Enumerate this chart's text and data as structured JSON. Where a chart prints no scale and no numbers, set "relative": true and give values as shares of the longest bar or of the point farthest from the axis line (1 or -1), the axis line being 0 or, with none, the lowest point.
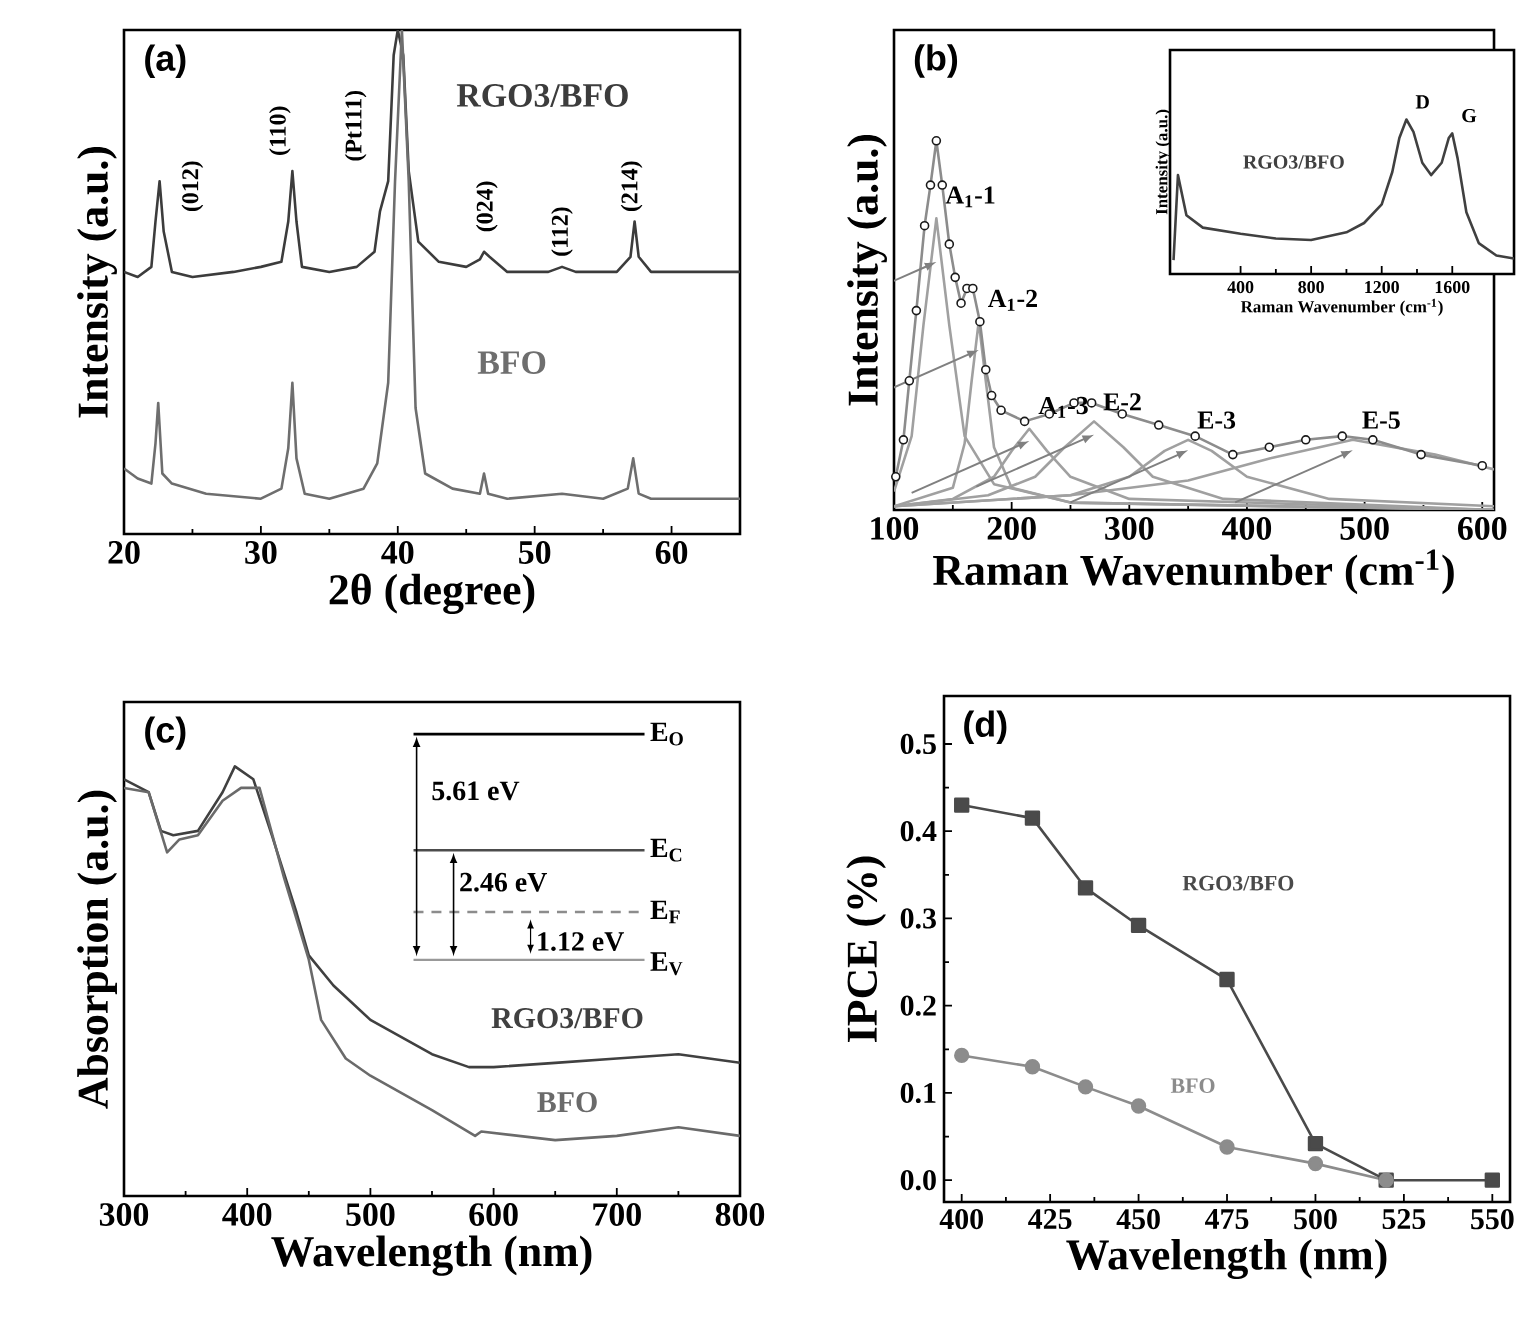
{
  "chart_data": [
    {
      "type": "line",
      "title": "(a)",
      "xlabel": "2θ (degree)",
      "ylabel": "Intensity (a.u.)",
      "relative": true,
      "xlim": [
        20,
        65
      ],
      "xticks": [
        20,
        30,
        40,
        50,
        60
      ],
      "series": [
        {
          "name": "RGO3/BFO",
          "color": "#3c3c3c",
          "x": [
            20,
            21,
            22,
            22.3,
            22.6,
            22.9,
            23.5,
            25,
            28,
            30,
            31.5,
            32,
            32.3,
            32.6,
            33,
            35,
            37,
            38.3,
            38.7,
            39.3,
            39.7,
            40,
            40.4,
            40.8,
            41.5,
            43,
            45,
            46,
            46.3,
            46.7,
            48,
            51,
            52,
            53,
            56,
            57,
            57.3,
            57.6,
            58.5,
            62,
            65
          ],
          "values": [
            0.52,
            0.51,
            0.53,
            0.62,
            0.7,
            0.6,
            0.52,
            0.51,
            0.52,
            0.53,
            0.54,
            0.62,
            0.72,
            0.62,
            0.53,
            0.52,
            0.53,
            0.56,
            0.64,
            0.7,
            0.95,
            1.0,
            0.95,
            0.72,
            0.58,
            0.54,
            0.53,
            0.545,
            0.56,
            0.55,
            0.52,
            0.52,
            0.53,
            0.52,
            0.52,
            0.55,
            0.62,
            0.55,
            0.52,
            0.52,
            0.52
          ]
        },
        {
          "name": "BFO",
          "color": "#6e6e6e",
          "x": [
            20,
            21,
            22,
            22.3,
            22.5,
            22.8,
            23.5,
            26,
            30,
            31.5,
            32,
            32.3,
            32.6,
            33.2,
            35,
            37.5,
            38.5,
            39.3,
            39.8,
            40.3,
            40.8,
            41.3,
            42,
            44,
            46,
            46.3,
            46.6,
            48,
            52,
            55,
            56.8,
            57.2,
            57.6,
            58.5,
            62,
            65
          ],
          "values": [
            0.13,
            0.11,
            0.1,
            0.18,
            0.26,
            0.12,
            0.1,
            0.08,
            0.07,
            0.09,
            0.17,
            0.3,
            0.15,
            0.08,
            0.07,
            0.09,
            0.14,
            0.3,
            0.7,
            1.0,
            0.7,
            0.25,
            0.12,
            0.09,
            0.08,
            0.12,
            0.08,
            0.07,
            0.08,
            0.07,
            0.09,
            0.15,
            0.08,
            0.07,
            0.07,
            0.07
          ]
        }
      ],
      "annotations": [
        "(012)",
        "(110)",
        "(Pt111)",
        "(024)",
        "(112)",
        "(214)"
      ]
    },
    {
      "type": "line",
      "title": "(b)",
      "xlabel": "Raman Wavenumber (cm$^{-1}$)",
      "ylabel": "Intensity (a.u.)",
      "relative": true,
      "xlim": [
        100,
        610
      ],
      "xticks": [
        100,
        200,
        300,
        400,
        500,
        600
      ],
      "series": [
        {
          "color": "#a0a0a0",
          "x": [
            100,
            115,
            125,
            136,
            147,
            160,
            185,
            250,
            610
          ],
          "values": [
            0.05,
            0.2,
            0.5,
            0.79,
            0.5,
            0.2,
            0.07,
            0.02,
            0.0
          ]
        },
        {
          "color": "#a0a0a0",
          "x": [
            100,
            150,
            160,
            166,
            172,
            178,
            185,
            200,
            250,
            610
          ],
          "values": [
            0.01,
            0.06,
            0.18,
            0.35,
            0.51,
            0.35,
            0.17,
            0.06,
            0.02,
            0.0
          ]
        },
        {
          "color": "#a0a0a0",
          "x": [
            100,
            150,
            185,
            200,
            215,
            230,
            250,
            300,
            610
          ],
          "values": [
            0.01,
            0.03,
            0.09,
            0.16,
            0.22,
            0.16,
            0.09,
            0.03,
            0.0
          ]
        },
        {
          "color": "#a0a0a0",
          "x": [
            100,
            180,
            220,
            245,
            270,
            295,
            320,
            380,
            610
          ],
          "values": [
            0.01,
            0.04,
            0.09,
            0.17,
            0.24,
            0.17,
            0.09,
            0.03,
            0.0
          ]
        },
        {
          "color": "#a0a0a0",
          "x": [
            100,
            250,
            300,
            330,
            350,
            370,
            400,
            470,
            610
          ],
          "values": [
            0.01,
            0.04,
            0.09,
            0.16,
            0.19,
            0.16,
            0.09,
            0.03,
            0.01
          ]
        },
        {
          "color": "#a0a0a0",
          "x": [
            100,
            250,
            350,
            420,
            490,
            560,
            610
          ],
          "values": [
            0.01,
            0.04,
            0.08,
            0.14,
            0.19,
            0.15,
            0.11
          ]
        },
        {
          "color": "#8c8c8c",
          "x": [
            101.5,
            108,
            113,
            119,
            126,
            131,
            136,
            141,
            147,
            152,
            157,
            162,
            167,
            173,
            178,
            183,
            191,
            211,
            232,
            253,
            268,
            294,
            325,
            356,
            388,
            419,
            450,
            481,
            507,
            548,
            600
          ],
          "values": [
            0.09,
            0.19,
            0.35,
            0.54,
            0.77,
            0.88,
            1.0,
            0.88,
            0.72,
            0.63,
            0.56,
            0.6,
            0.6,
            0.51,
            0.38,
            0.31,
            0.27,
            0.24,
            0.26,
            0.29,
            0.29,
            0.26,
            0.23,
            0.2,
            0.15,
            0.17,
            0.19,
            0.2,
            0.19,
            0.15,
            0.12
          ]
        },
        {
          "type": "scatter",
          "marker": "circle",
          "color": "#1a1a1a",
          "x": [
            101.5,
            108,
            113,
            119,
            126,
            131,
            136,
            141,
            147,
            152,
            157,
            162,
            167,
            173,
            178,
            183,
            191,
            211,
            232,
            253,
            268,
            294,
            325,
            356,
            388,
            419,
            450,
            481,
            507,
            548,
            600
          ],
          "values": [
            0.09,
            0.19,
            0.35,
            0.54,
            0.77,
            0.88,
            1.0,
            0.88,
            0.72,
            0.63,
            0.56,
            0.6,
            0.6,
            0.51,
            0.38,
            0.31,
            0.27,
            0.24,
            0.26,
            0.29,
            0.29,
            0.26,
            0.23,
            0.2,
            0.15,
            0.17,
            0.19,
            0.2,
            0.19,
            0.15,
            0.12
          ]
        }
      ],
      "annotations": [
        {
          "text": "A$_{1}$-1",
          "x": 136,
          "y": 0.79
        },
        {
          "text": "A$_{1}$-2",
          "x": 172,
          "y": 0.51
        },
        {
          "text": "A$_{1}$-3",
          "x": 215,
          "y": 0.22
        },
        {
          "text": "E-2",
          "x": 270,
          "y": 0.24
        },
        {
          "text": "E-3",
          "x": 350,
          "y": 0.19
        },
        {
          "text": "E-5",
          "x": 490,
          "y": 0.19
        }
      ]
    },
    {
      "type": "line",
      "xlabel": "Raman Wavenumber (cm$^{-1}$)",
      "ylabel": "Intensity (a.u.)",
      "relative": true,
      "xlim": [
        0,
        1950
      ],
      "xticks": [
        400,
        800,
        1200,
        1600
      ],
      "series": [
        {
          "name": "RGO3/BFO",
          "color": "#404040",
          "x": [
            20,
            45,
            93,
            186,
            400,
            600,
            800,
            1000,
            1100,
            1200,
            1260,
            1300,
            1340,
            1380,
            1430,
            1480,
            1540,
            1580,
            1600,
            1630,
            1680,
            1750,
            1850,
            1950
          ],
          "values": [
            0.09,
            0.64,
            0.38,
            0.3,
            0.26,
            0.23,
            0.22,
            0.27,
            0.33,
            0.45,
            0.66,
            0.88,
            1.0,
            0.92,
            0.72,
            0.64,
            0.72,
            0.88,
            0.91,
            0.75,
            0.4,
            0.2,
            0.12,
            0.1
          ]
        }
      ],
      "annotations": [
        {
          "text": "D",
          "x": 1340,
          "y": 1.0
        },
        {
          "text": "G",
          "x": 1600,
          "y": 0.91
        }
      ]
    },
    {
      "type": "line",
      "title": "(c)",
      "xlabel": "Wavelength (nm)",
      "ylabel": "Absorption (a.u.)",
      "relative": true,
      "xlim": [
        300,
        800
      ],
      "xticks": [
        300,
        400,
        500,
        600,
        700,
        800
      ],
      "series": [
        {
          "name": "RGO3/BFO",
          "color": "#404040",
          "x": [
            300,
            320,
            330,
            340,
            360,
            380,
            390,
            405,
            420,
            440,
            450,
            470,
            500,
            550,
            580,
            600,
            650,
            700,
            750,
            800
          ],
          "values": [
            0.97,
            0.94,
            0.85,
            0.84,
            0.85,
            0.94,
            1.0,
            0.97,
            0.84,
            0.66,
            0.56,
            0.49,
            0.41,
            0.33,
            0.3,
            0.3,
            0.31,
            0.32,
            0.33,
            0.31
          ]
        },
        {
          "name": "BFO",
          "color": "#6a6a6a",
          "x": [
            300,
            320,
            335,
            345,
            360,
            380,
            395,
            410,
            430,
            450,
            460,
            480,
            500,
            550,
            585,
            590,
            620,
            650,
            700,
            750,
            800
          ],
          "values": [
            0.95,
            0.94,
            0.8,
            0.83,
            0.84,
            0.92,
            0.95,
            0.95,
            0.74,
            0.55,
            0.41,
            0.32,
            0.28,
            0.2,
            0.14,
            0.15,
            0.14,
            0.13,
            0.14,
            0.16,
            0.14
          ]
        }
      ],
      "annotations": [
        "E$_{O}$",
        "5.61 eV",
        "E$_{C}$",
        "2.46 eV",
        "E$_{F}$",
        "1.12 eV",
        "E$_{V}$"
      ]
    },
    {
      "type": "line",
      "title": "(d)",
      "xlabel": "Wavelength (nm)",
      "ylabel": "IPCE (%)",
      "xlim": [
        395,
        555
      ],
      "xticks": [
        400,
        425,
        450,
        475,
        500,
        525,
        550
      ],
      "ylim": [
        -0.025,
        0.555
      ],
      "yticks": [
        {
          "value": 0,
          "label": "0.0"
        },
        0.1,
        0.2,
        0.3,
        0.4,
        0.5
      ],
      "series": [
        {
          "name": "RGO3/BFO",
          "marker": "square",
          "color": "#4a4a4a",
          "x": [
            400,
            420,
            435,
            450,
            475,
            500,
            520,
            550
          ],
          "values": [
            0.43,
            0.415,
            0.335,
            0.292,
            0.23,
            0.042,
            0.0,
            0.0
          ]
        },
        {
          "name": "BFO",
          "marker": "circle",
          "color": "#8c8c8c",
          "x": [
            400,
            420,
            435,
            450,
            475,
            500,
            520
          ],
          "values": [
            0.143,
            0.13,
            0.107,
            0.085,
            0.038,
            0.019,
            0.0
          ]
        }
      ]
    }
  ]
}
